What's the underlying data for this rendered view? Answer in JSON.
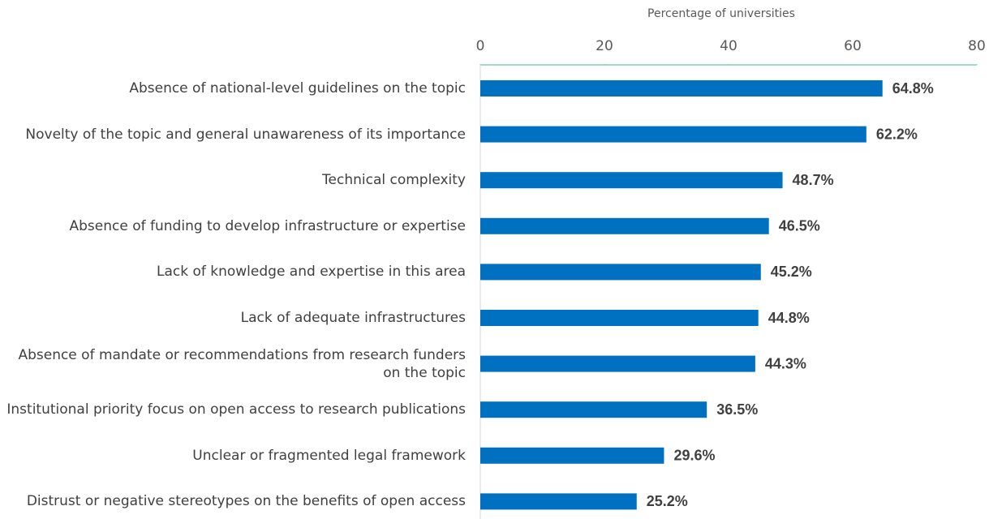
{
  "chart_data": {
    "type": "bar",
    "orientation": "horizontal",
    "x_label": "Percentage of universities",
    "categories": [
      "Absence of national-level guidelines on the topic",
      "Novelty of the topic and general unawareness of its importance",
      "Technical complexity",
      "Absence of funding to develop infrastructure or expertise",
      "Lack of knowledge and expertise in this area",
      "Lack of adequate infrastructures",
      "Absence of mandate or recommendations from research funders on the topic",
      "Institutional priority focus on open access to research publications",
      "Unclear or fragmented legal framework",
      "Distrust or negative stereotypes on the benefits of open access"
    ],
    "values": [
      64.8,
      62.2,
      48.7,
      46.5,
      45.2,
      44.8,
      44.3,
      36.5,
      29.6,
      25.2
    ],
    "value_labels": [
      "64.8%",
      "62.2%",
      "48.7%",
      "46.5%",
      "45.2%",
      "44.8%",
      "44.3%",
      "36.5%",
      "29.6%",
      "25.2%"
    ],
    "color": "#0070c0",
    "xlim": [
      0,
      80
    ],
    "xticks": [
      0,
      20,
      40,
      60,
      80
    ],
    "grid": false
  }
}
